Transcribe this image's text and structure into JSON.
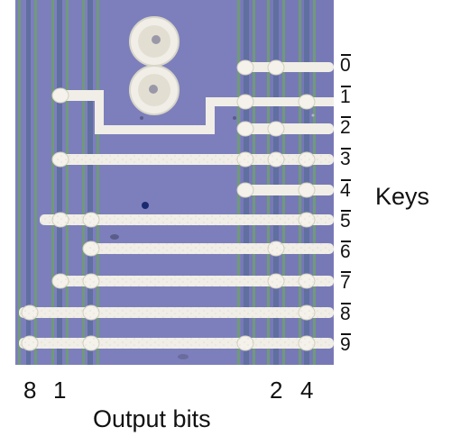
{
  "figure": {
    "keys_title": "Keys",
    "output_title": "Output bits",
    "keys": [
      "0",
      "1",
      "2",
      "3",
      "4",
      "5",
      "6",
      "7",
      "8",
      "9"
    ],
    "bits": [
      "8",
      "1",
      "2",
      "4"
    ]
  },
  "colors": {
    "substrate": "#7d7fbc",
    "metal": "#f0eee6",
    "metal_edge": "#d8d6c8",
    "green_line": "#6f9a7a",
    "dark_line": "#2f3a5c"
  }
}
